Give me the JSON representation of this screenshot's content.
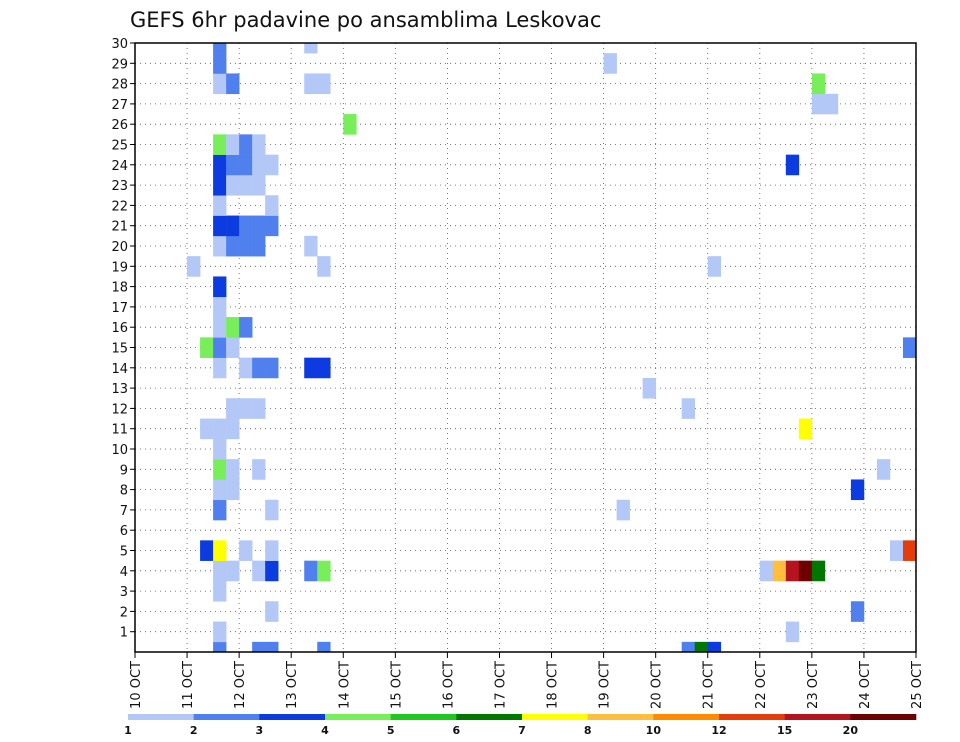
{
  "chart_data": {
    "type": "heatmap",
    "title": "GEFS 6hr padavine po ansamblima Leskovac",
    "xlabel": "",
    "ylabel": "",
    "x_tick_labels": [
      "10 OCT",
      "11 OCT",
      "12 OCT",
      "13 OCT",
      "14 OCT",
      "15 OCT",
      "16 OCT",
      "17 OCT",
      "18 OCT",
      "19 OCT",
      "20 OCT",
      "21 OCT",
      "22 OCT",
      "23 OCT",
      "24 OCT",
      "25 OCT"
    ],
    "y_tick_labels": [
      "1",
      "2",
      "3",
      "4",
      "5",
      "6",
      "7",
      "8",
      "9",
      "10",
      "11",
      "12",
      "13",
      "14",
      "15",
      "16",
      "17",
      "18",
      "19",
      "20",
      "21",
      "22",
      "23",
      "24",
      "25",
      "26",
      "27",
      "28",
      "29",
      "30"
    ],
    "x_unit": "6-hour step from 10 OCT 00Z",
    "x_range": [
      0,
      60
    ],
    "y_range": [
      0,
      30
    ],
    "grid": true,
    "legend_position": "bottom",
    "color_scale": {
      "labels": [
        "1",
        "2",
        "3",
        "4",
        "5",
        "6",
        "7",
        "8",
        "10",
        "12",
        "15",
        "20"
      ],
      "colors": [
        "#b4c8f8",
        "#5080ee",
        "#0c3ce0",
        "#78ee5a",
        "#1ec81e",
        "#007800",
        "#ffff00",
        "#ffbe3c",
        "#ff8c00",
        "#e63c0a",
        "#b4141e",
        "#6e0000"
      ]
    },
    "cells": [
      [
        6,
        0,
        2
      ],
      [
        9,
        0,
        2
      ],
      [
        10,
        0,
        2
      ],
      [
        14,
        0,
        2
      ],
      [
        42,
        0,
        2
      ],
      [
        43,
        0,
        6
      ],
      [
        44,
        0,
        3
      ],
      [
        6,
        1,
        1
      ],
      [
        50,
        1,
        1
      ],
      [
        10,
        2,
        1
      ],
      [
        55,
        2,
        2
      ],
      [
        6,
        3,
        1
      ],
      [
        6,
        4,
        1
      ],
      [
        7,
        4,
        1
      ],
      [
        9,
        4,
        1
      ],
      [
        10,
        4,
        3
      ],
      [
        13,
        4,
        2
      ],
      [
        14,
        4,
        4
      ],
      [
        48,
        4,
        1
      ],
      [
        49,
        4,
        8
      ],
      [
        50,
        4,
        11
      ],
      [
        51,
        4,
        12
      ],
      [
        52,
        4,
        6
      ],
      [
        5,
        5,
        3
      ],
      [
        6,
        5,
        7
      ],
      [
        8,
        5,
        1
      ],
      [
        10,
        5,
        1
      ],
      [
        58,
        5,
        1
      ],
      [
        59,
        5,
        10
      ],
      [
        6,
        7,
        2
      ],
      [
        10,
        7,
        1
      ],
      [
        37,
        7,
        1
      ],
      [
        6,
        8,
        1
      ],
      [
        7,
        8,
        1
      ],
      [
        55,
        8,
        3
      ],
      [
        6,
        9,
        4
      ],
      [
        7,
        9,
        1
      ],
      [
        9,
        9,
        1
      ],
      [
        57,
        9,
        1
      ],
      [
        6,
        10,
        1
      ],
      [
        5,
        11,
        1
      ],
      [
        6,
        11,
        1
      ],
      [
        7,
        11,
        1
      ],
      [
        51,
        11,
        7
      ],
      [
        7,
        12,
        1
      ],
      [
        8,
        12,
        1
      ],
      [
        9,
        12,
        1
      ],
      [
        42,
        12,
        1
      ],
      [
        39,
        13,
        1
      ],
      [
        6,
        14,
        1
      ],
      [
        8,
        14,
        1
      ],
      [
        9,
        14,
        2
      ],
      [
        10,
        14,
        2
      ],
      [
        13,
        14,
        3
      ],
      [
        14,
        14,
        3
      ],
      [
        5,
        15,
        4
      ],
      [
        6,
        15,
        2
      ],
      [
        7,
        15,
        1
      ],
      [
        59,
        15,
        2
      ],
      [
        6,
        16,
        1
      ],
      [
        7,
        16,
        4
      ],
      [
        8,
        16,
        2
      ],
      [
        6,
        17,
        1
      ],
      [
        6,
        18,
        3
      ],
      [
        4,
        19,
        1
      ],
      [
        14,
        19,
        1
      ],
      [
        44,
        19,
        1
      ],
      [
        6,
        20,
        1
      ],
      [
        7,
        20,
        2
      ],
      [
        8,
        20,
        2
      ],
      [
        9,
        20,
        2
      ],
      [
        13,
        20,
        1
      ],
      [
        6,
        21,
        3
      ],
      [
        7,
        21,
        3
      ],
      [
        8,
        21,
        2
      ],
      [
        9,
        21,
        2
      ],
      [
        10,
        21,
        2
      ],
      [
        6,
        22,
        1
      ],
      [
        10,
        22,
        1
      ],
      [
        6,
        23,
        3
      ],
      [
        7,
        23,
        1
      ],
      [
        8,
        23,
        1
      ],
      [
        9,
        23,
        1
      ],
      [
        6,
        24,
        3
      ],
      [
        7,
        24,
        2
      ],
      [
        8,
        24,
        2
      ],
      [
        9,
        24,
        1
      ],
      [
        10,
        24,
        1
      ],
      [
        50,
        24,
        3
      ],
      [
        6,
        25,
        4
      ],
      [
        7,
        25,
        1
      ],
      [
        8,
        25,
        2
      ],
      [
        9,
        25,
        1
      ],
      [
        16,
        26,
        4
      ],
      [
        52,
        27,
        1
      ],
      [
        53,
        27,
        1
      ],
      [
        6,
        28,
        1
      ],
      [
        7,
        28,
        2
      ],
      [
        13,
        28,
        1
      ],
      [
        14,
        28,
        1
      ],
      [
        52,
        28,
        4
      ],
      [
        6,
        29,
        2
      ],
      [
        36,
        29,
        1
      ],
      [
        6,
        30,
        2
      ],
      [
        13,
        30,
        1
      ]
    ]
  }
}
